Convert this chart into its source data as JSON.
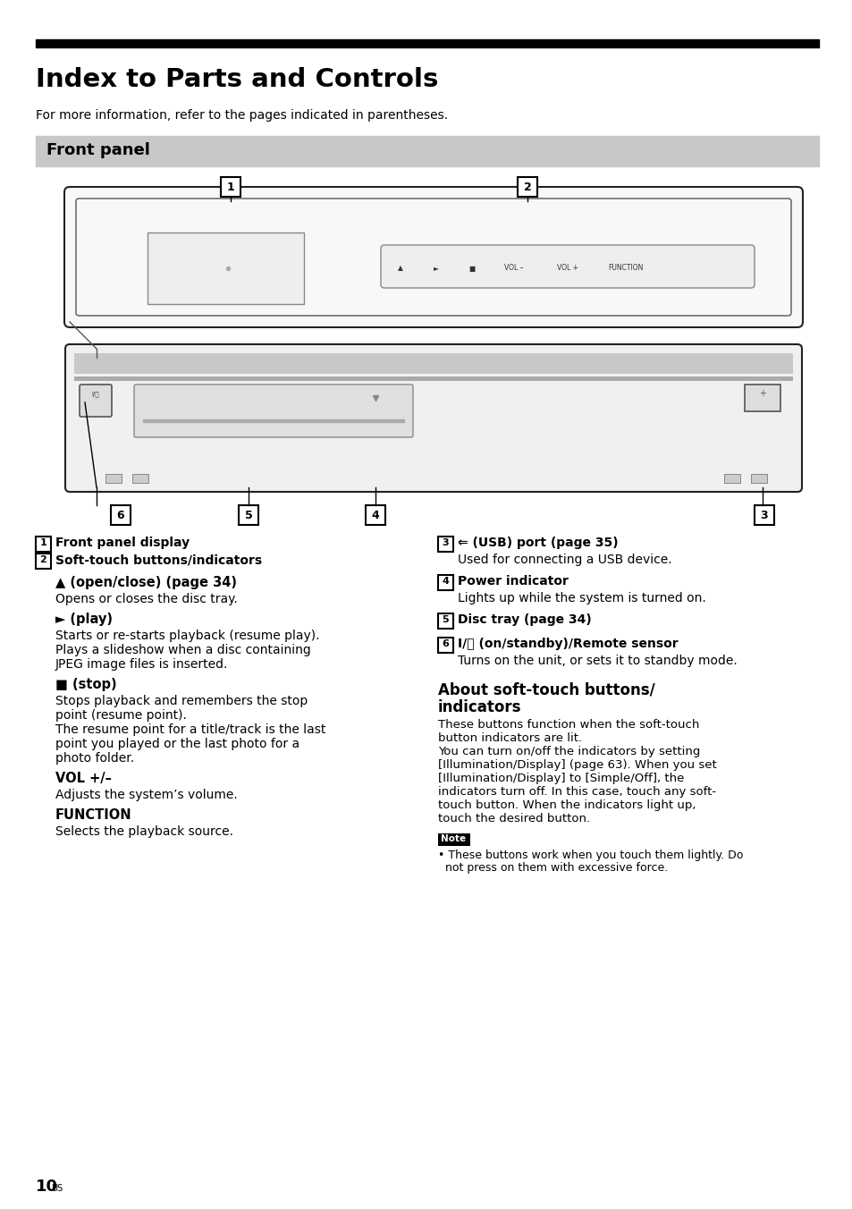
{
  "title": "Index to Parts and Controls",
  "subtitle": "For more information, refer to the pages indicated in parentheses.",
  "section_header": "Front panel",
  "bg_color": "#ffffff",
  "header_bar_color": "#000000",
  "section_bg_color": "#c8c8c8",
  "page_number": "10",
  "page_suffix": "US",
  "left_items": [
    {
      "num": "1",
      "bold": "Front panel display",
      "lines": []
    },
    {
      "num": "2",
      "bold": "Soft-touch buttons/indicators",
      "lines": []
    }
  ],
  "left_subitems": [
    {
      "bold": "▲ (open/close) (page 34)",
      "lines": [
        "Opens or closes the disc tray."
      ]
    },
    {
      "bold": "► (play)",
      "lines": [
        "Starts or re-starts playback (resume play).",
        "Plays a slideshow when a disc containing",
        "JPEG image files is inserted."
      ]
    },
    {
      "bold": "■ (stop)",
      "lines": [
        "Stops playback and remembers the stop",
        "point (resume point).",
        "The resume point for a title/track is the last",
        "point you played or the last photo for a",
        "photo folder."
      ]
    },
    {
      "bold": "VOL +/–",
      "lines": [
        "Adjusts the system’s volume."
      ]
    },
    {
      "bold": "FUNCTION",
      "lines": [
        "Selects the playback source."
      ]
    }
  ],
  "right_items": [
    {
      "num": "3",
      "bold": "⇐ (USB) port (page 35)",
      "lines": [
        "Used for connecting a USB device."
      ]
    },
    {
      "num": "4",
      "bold": "Power indicator",
      "lines": [
        "Lights up while the system is turned on."
      ]
    },
    {
      "num": "5",
      "bold": "Disc tray (page 34)",
      "lines": []
    },
    {
      "num": "6",
      "bold": "I/⏻ (on/standby)/Remote sensor",
      "lines": [
        "Turns on the unit, or sets it to standby mode."
      ]
    }
  ],
  "about_title1": "About soft-touch buttons/",
  "about_title2": "indicators",
  "about_lines": [
    "These buttons function when the soft-touch",
    "button indicators are lit.",
    "You can turn on/off the indicators by setting",
    "[Illumination/Display] (page 63). When you set",
    "[Illumination/Display] to [Simple/Off], the",
    "indicators turn off. In this case, touch any soft-",
    "touch button. When the indicators light up,",
    "touch the desired button."
  ],
  "note_lines": [
    "• These buttons work when you touch them lightly. Do",
    "  not press on them with excessive force."
  ]
}
